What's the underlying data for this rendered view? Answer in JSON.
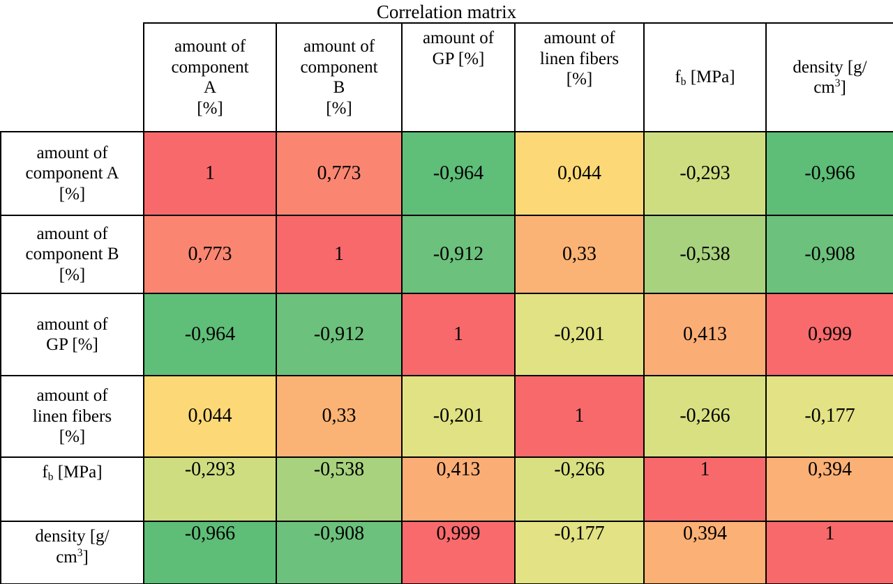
{
  "title": "Correlation matrix",
  "colors": {
    "border": "#000000",
    "text": "#000000",
    "header_bg": "#ffffff",
    "scale_max_color": "#F8696B",
    "scale_mid_color": "#FFEB84",
    "scale_min_color": "#63BE7B"
  },
  "matrix": {
    "column_headers": [
      {
        "text": "amount of\ncomponent\nA\n[%]",
        "valign": "middle"
      },
      {
        "text": "amount of\ncomponent\nB\n[%]",
        "valign": "middle"
      },
      {
        "text": "amount of\nGP [%]",
        "valign": "top"
      },
      {
        "text": "amount of\nlinen fibers\n[%]",
        "valign": "top"
      },
      {
        "html": "f<sub>b</sub> [MPa]",
        "valign": "middle"
      },
      {
        "html": "density [g/\ncm<sup>3</sup>]",
        "valign": "middle"
      }
    ],
    "rows": [
      {
        "header": {
          "text": "amount of\ncomponent A\n[%]"
        },
        "valign": "middle",
        "values": [
          "1",
          "0,773",
          "-0,964",
          "0,044",
          "-0,293",
          "-0,966"
        ],
        "colors": [
          "#F8696B",
          "#FA8671",
          "#5FBE78",
          "#FCD976",
          "#CFDD81",
          "#5EBD77"
        ]
      },
      {
        "header": {
          "text": "amount of\ncomponent B\n[%]"
        },
        "valign": "middle",
        "values": [
          "0,773",
          "1",
          "-0,912",
          "0,33",
          "-0,538",
          "-0,908"
        ],
        "colors": [
          "#FA8671",
          "#F8696B",
          "#6CC17C",
          "#FBB375",
          "#A8D27E",
          "#6CC17C"
        ]
      },
      {
        "header": {
          "text": "amount of\nGP [%]"
        },
        "valign": "middle",
        "values": [
          "-0,964",
          "-0,912",
          "1",
          "-0,201",
          "0,413",
          "0,999"
        ],
        "colors": [
          "#5FBE78",
          "#6CC17C",
          "#F8696B",
          "#E0E283",
          "#FBAD76",
          "#F86A6C"
        ]
      },
      {
        "header": {
          "text": "amount of\nlinen fibers\n[%]"
        },
        "valign": "middle",
        "values": [
          "0,044",
          "0,33",
          "-0,201",
          "1",
          "-0,266",
          "-0,177"
        ],
        "colors": [
          "#FCD976",
          "#FBB375",
          "#E0E283",
          "#F8696B",
          "#D8E082",
          "#E3E284"
        ]
      },
      {
        "header": {
          "html": "f<sub>b</sub> [MPa]"
        },
        "valign": "top",
        "values": [
          "-0,293",
          "-0,538",
          "0,413",
          "-0,266",
          "1",
          "0,394"
        ],
        "colors": [
          "#CFDD81",
          "#A8D27E",
          "#FBAD76",
          "#D8E082",
          "#F8696B",
          "#FBB075"
        ]
      },
      {
        "header": {
          "html": "density [g/\ncm<sup>3</sup>]"
        },
        "valign": "top",
        "values": [
          "-0,966",
          "-0,908",
          "0,999",
          "-0,177",
          "0,394",
          "1"
        ],
        "colors": [
          "#5EBD77",
          "#6CC17C",
          "#F86A6C",
          "#E3E284",
          "#FBB075",
          "#F8696B"
        ]
      }
    ]
  },
  "chart_data": {
    "type": "heatmap",
    "title": "Correlation matrix",
    "variables": [
      "amount of component A [%]",
      "amount of component B [%]",
      "amount of GP [%]",
      "amount of linen fibers [%]",
      "fb [MPa]",
      "density [g/cm³]"
    ],
    "matrix": [
      [
        1,
        0.773,
        -0.964,
        0.044,
        -0.293,
        -0.966
      ],
      [
        0.773,
        1,
        -0.912,
        0.33,
        -0.538,
        -0.908
      ],
      [
        -0.964,
        -0.912,
        1,
        -0.201,
        0.413,
        0.999
      ],
      [
        0.044,
        0.33,
        -0.201,
        1,
        -0.266,
        -0.177
      ],
      [
        -0.293,
        -0.538,
        0.413,
        -0.266,
        1,
        0.394
      ],
      [
        -0.966,
        -0.908,
        0.999,
        -0.177,
        0.394,
        1
      ]
    ],
    "value_format": "decimal comma",
    "colorscale": {
      "min": {
        "value": -1,
        "color": "#63BE7B"
      },
      "mid": {
        "value": 0,
        "color": "#FFEB84"
      },
      "max": {
        "value": 1,
        "color": "#F8696B"
      }
    },
    "legend_position": "none",
    "grid": true
  }
}
